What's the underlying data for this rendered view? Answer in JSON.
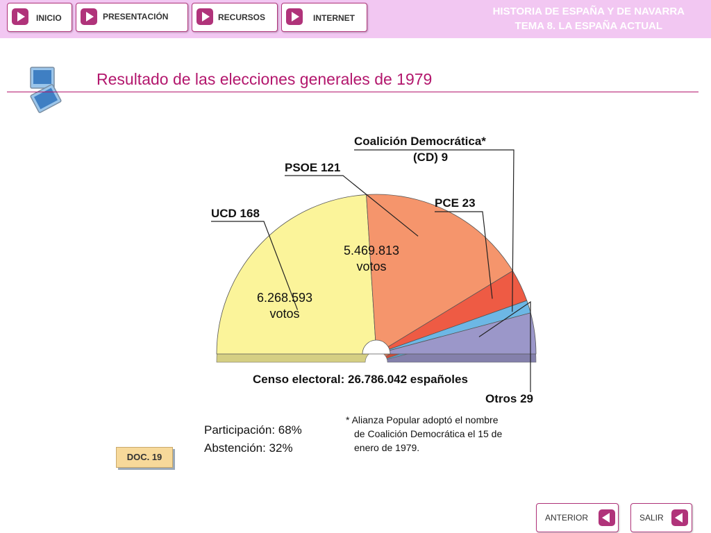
{
  "nav": {
    "inicio": "INICIO",
    "presentacion": "PRESENTACIÓN",
    "recursos": "RECURSOS",
    "internet": "INTERNET"
  },
  "course": {
    "line1": "HISTORIA DE ESPAÑA Y DE NAVARRA",
    "line2": "TEMA 8. LA ESPAÑA ACTUAL"
  },
  "page_title": "Resultado de las elecciones generales de 1979",
  "doc_label": "DOC. 19",
  "footer": {
    "anterior": "ANTERIOR",
    "salir": "SALIR"
  },
  "colors": {
    "topbar": "#f2c7f2",
    "accent": "#b3176d",
    "arrow_fill": "#b0337a",
    "ucd": "#fbf49a",
    "psoe": "#f5956c",
    "pce": "#ee5b44",
    "cd": "#6db7e5",
    "otros": "#9b97c9"
  },
  "chart_data": {
    "type": "pie",
    "subtype": "semicircle-parliament",
    "total_seats": 350,
    "series": [
      {
        "key": "ucd",
        "name": "UCD",
        "label": "UCD 168",
        "seats": 168,
        "votes_text": "6.268.593",
        "votes_unit": "votos",
        "color": "#fbf49a"
      },
      {
        "key": "psoe",
        "name": "PSOE",
        "label": "PSOE 121",
        "seats": 121,
        "votes_text": "5.469.813",
        "votes_unit": "votos",
        "color": "#f5956c"
      },
      {
        "key": "pce",
        "name": "PCE",
        "label": "PCE 23",
        "seats": 23,
        "color": "#ee5b44"
      },
      {
        "key": "cd",
        "name": "CD",
        "label_line1": "Coalición Democrática*",
        "label_line2": "(CD) 9",
        "seats": 9,
        "color": "#6db7e5"
      },
      {
        "key": "otros",
        "name": "Otros",
        "label": "Otros 29",
        "seats": 29,
        "color": "#9b97c9"
      }
    ],
    "censo": "Censo electoral: 26.786.042 españoles",
    "participacion": "Participación: 68%",
    "abstencion": "Abstención: 32%",
    "footnote_line1": "* Alianza Popular adoptó el nombre",
    "footnote_line2": "de Coalición Democrática el 15 de",
    "footnote_line3": "enero de 1979."
  }
}
